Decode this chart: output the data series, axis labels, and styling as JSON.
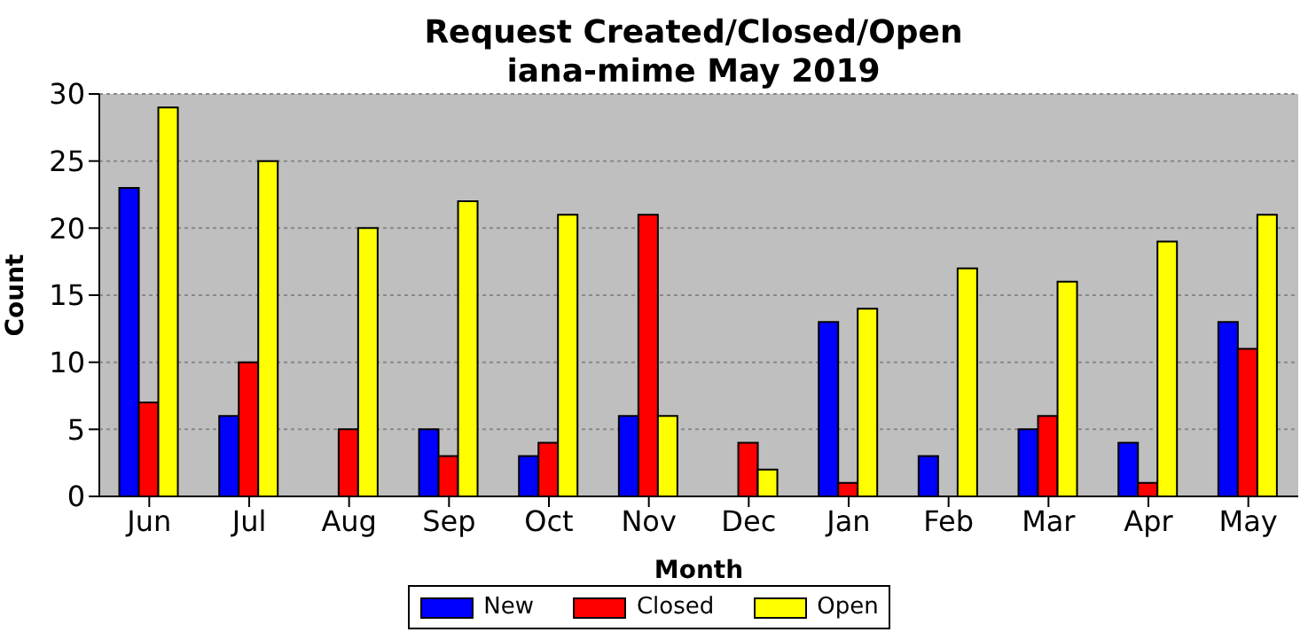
{
  "chart_data": {
    "type": "bar",
    "title": "Request Created/Closed/Open",
    "subtitle": "iana-mime May 2019",
    "xlabel": "Month",
    "ylabel": "Count",
    "categories": [
      "Jun",
      "Jul",
      "Aug",
      "Sep",
      "Oct",
      "Nov",
      "Dec",
      "Jan",
      "Feb",
      "Mar",
      "Apr",
      "May"
    ],
    "series": [
      {
        "name": "New",
        "color": "#0000ff",
        "values": [
          23,
          6,
          0,
          5,
          3,
          6,
          0,
          13,
          3,
          5,
          4,
          13
        ]
      },
      {
        "name": "Closed",
        "color": "#ff0000",
        "values": [
          7,
          10,
          5,
          3,
          4,
          21,
          4,
          1,
          0,
          6,
          1,
          11
        ]
      },
      {
        "name": "Open",
        "color": "#ffff00",
        "values": [
          29,
          25,
          20,
          22,
          21,
          6,
          2,
          14,
          17,
          16,
          19,
          21
        ]
      }
    ],
    "ylim": [
      0,
      30
    ],
    "yticks": [
      0,
      5,
      10,
      15,
      20,
      25,
      30
    ],
    "grid": "y",
    "legend": "bottom"
  }
}
